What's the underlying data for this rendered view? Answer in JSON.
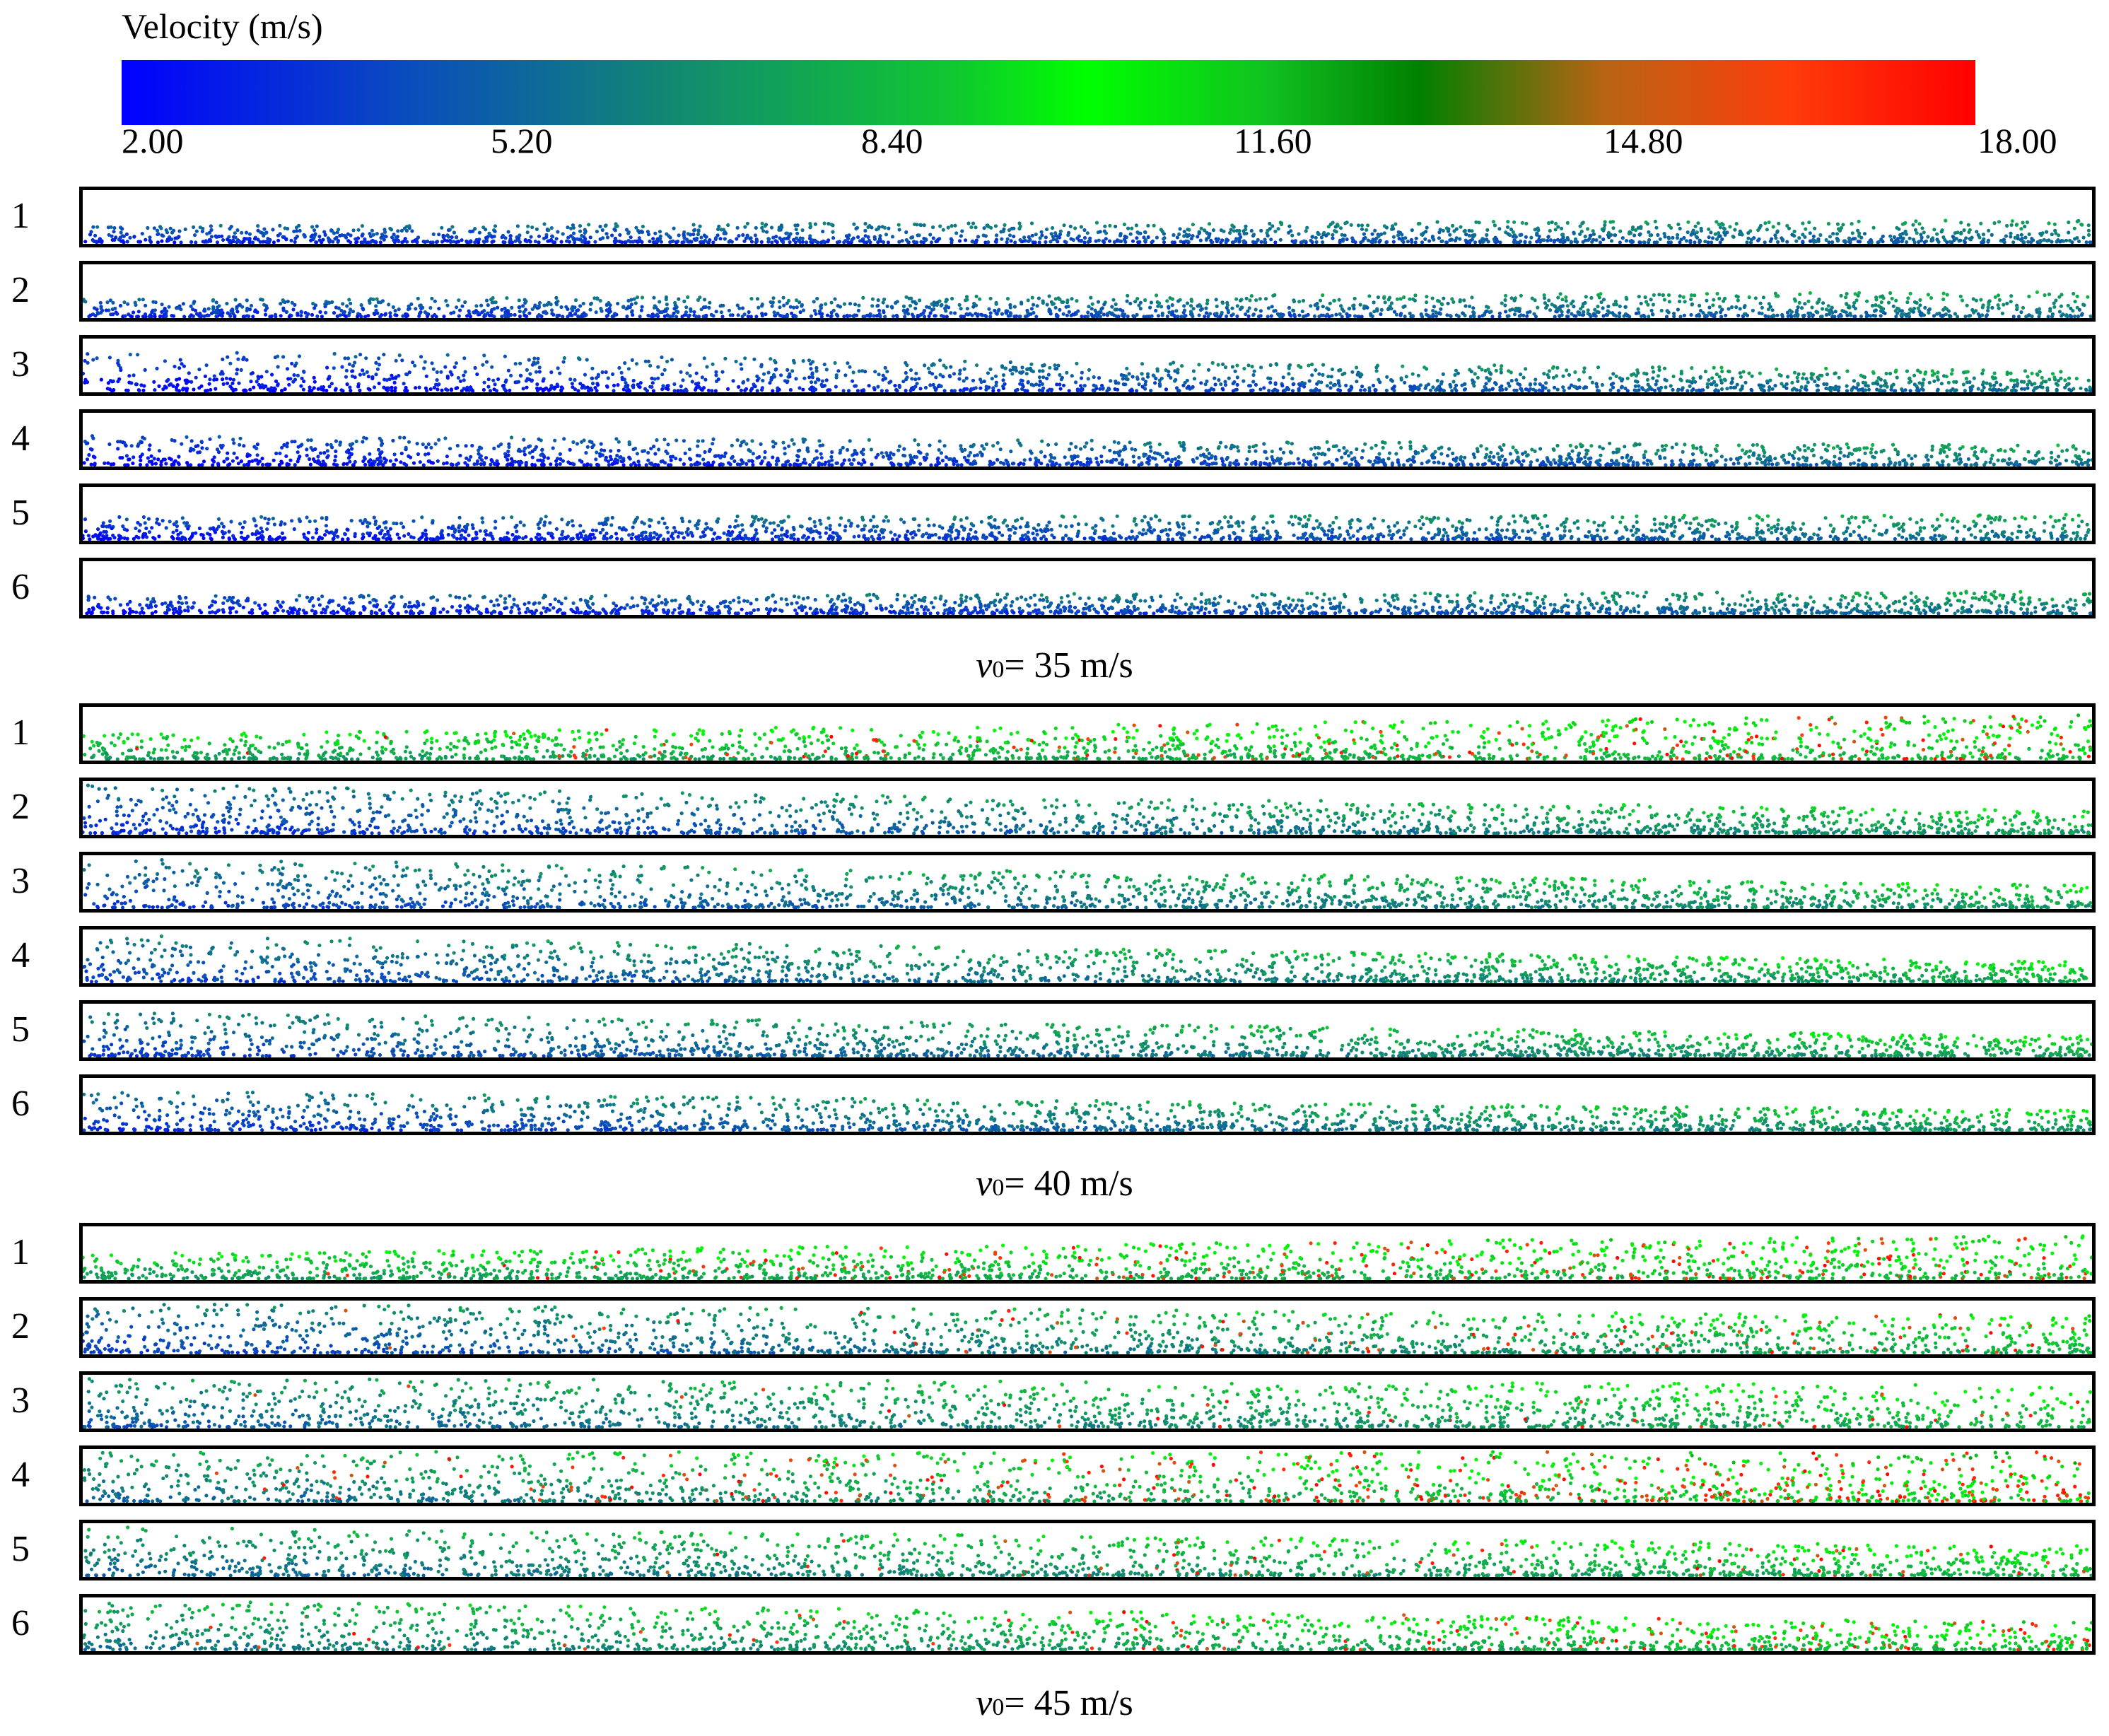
{
  "colorbar": {
    "title": "Velocity (m/s)",
    "ticks": [
      "2.00",
      "5.20",
      "8.40",
      "11.60",
      "14.80",
      "18.00"
    ],
    "min": 2.0,
    "max": 18.0,
    "stops": [
      {
        "pos": 0.0,
        "color": "#0000ff"
      },
      {
        "pos": 0.15,
        "color": "#0a4ac0"
      },
      {
        "pos": 0.3,
        "color": "#128a70"
      },
      {
        "pos": 0.45,
        "color": "#10c830"
      },
      {
        "pos": 0.52,
        "color": "#00ff00"
      },
      {
        "pos": 0.62,
        "color": "#10c020"
      },
      {
        "pos": 0.7,
        "color": "#008000"
      },
      {
        "pos": 0.8,
        "color": "#b86414"
      },
      {
        "pos": 0.9,
        "color": "#ff3c0a"
      },
      {
        "pos": 1.0,
        "color": "#ff0000"
      }
    ]
  },
  "groups": [
    {
      "caption_var": "v",
      "caption_sub": "0",
      "caption_rest": "= 35 m/s",
      "rows": [
        {
          "label": "1",
          "left_speed": 4.0,
          "right_speed": 6.5,
          "left_height": 0.35,
          "right_height": 0.45,
          "hot": 0
        },
        {
          "label": "2",
          "left_speed": 4.0,
          "right_speed": 6.8,
          "left_height": 0.35,
          "right_height": 0.5,
          "hot": 0
        },
        {
          "label": "3",
          "left_speed": 3.0,
          "right_speed": 7.0,
          "left_height": 0.8,
          "right_height": 0.4,
          "hot": 0
        },
        {
          "label": "4",
          "left_speed": 3.0,
          "right_speed": 6.8,
          "left_height": 0.6,
          "right_height": 0.4,
          "hot": 0
        },
        {
          "label": "5",
          "left_speed": 3.2,
          "right_speed": 7.0,
          "left_height": 0.45,
          "right_height": 0.5,
          "hot": 0
        },
        {
          "label": "6",
          "left_speed": 3.2,
          "right_speed": 7.0,
          "left_height": 0.35,
          "right_height": 0.45,
          "hot": 0
        }
      ]
    },
    {
      "caption_var": "v",
      "caption_sub": "0",
      "caption_rest": "= 40 m/s",
      "rows": [
        {
          "label": "1",
          "left_speed": 8.5,
          "right_speed": 10.0,
          "left_height": 0.5,
          "right_height": 0.9,
          "hot": 0.12
        },
        {
          "label": "2",
          "left_speed": 4.5,
          "right_speed": 8.5,
          "left_height": 1.0,
          "right_height": 0.45,
          "hot": 0
        },
        {
          "label": "3",
          "left_speed": 5.0,
          "right_speed": 8.5,
          "left_height": 1.0,
          "right_height": 0.45,
          "hot": 0
        },
        {
          "label": "4",
          "left_speed": 5.0,
          "right_speed": 9.0,
          "left_height": 0.95,
          "right_height": 0.4,
          "hot": 0
        },
        {
          "label": "5",
          "left_speed": 5.0,
          "right_speed": 8.8,
          "left_height": 0.9,
          "right_height": 0.4,
          "hot": 0
        },
        {
          "label": "6",
          "left_speed": 4.5,
          "right_speed": 8.5,
          "left_height": 0.8,
          "right_height": 0.4,
          "hot": 0
        }
      ]
    },
    {
      "caption_var": "v",
      "caption_sub": "0",
      "caption_rest": "= 45 m/s",
      "rows": [
        {
          "label": "1",
          "left_speed": 8.5,
          "right_speed": 10.0,
          "left_height": 0.5,
          "right_height": 0.9,
          "hot": 0.14
        },
        {
          "label": "2",
          "left_speed": 5.0,
          "right_speed": 9.5,
          "left_height": 1.0,
          "right_height": 0.75,
          "hot": 0.06
        },
        {
          "label": "3",
          "left_speed": 6.0,
          "right_speed": 9.5,
          "left_height": 1.0,
          "right_height": 0.85,
          "hot": 0.04
        },
        {
          "label": "4",
          "left_speed": 6.5,
          "right_speed": 11.0,
          "left_height": 1.0,
          "right_height": 1.0,
          "hot": 0.25
        },
        {
          "label": "5",
          "left_speed": 6.5,
          "right_speed": 9.5,
          "left_height": 1.0,
          "right_height": 0.6,
          "hot": 0.03
        },
        {
          "label": "6",
          "left_speed": 7.0,
          "right_speed": 10.0,
          "left_height": 1.0,
          "right_height": 0.55,
          "hot": 0.1
        }
      ]
    }
  ]
}
